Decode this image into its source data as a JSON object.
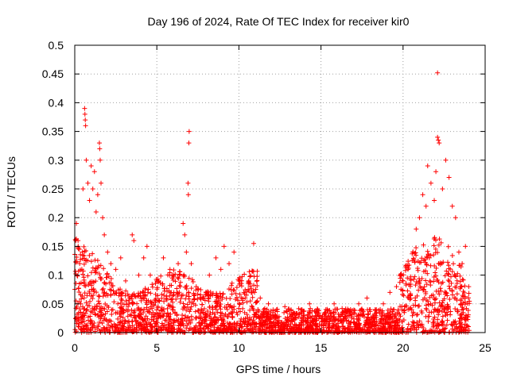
{
  "chart_data": {
    "type": "scatter",
    "title": "Day 196 of 2024, Rate Of TEC Index for receiver kir0",
    "xlabel": "GPS time / hours",
    "ylabel": "ROTI / TECUs",
    "xlim": [
      0,
      25
    ],
    "ylim": [
      0,
      0.5
    ],
    "xticks": [
      "0",
      "5",
      "10",
      "15",
      "20",
      "25"
    ],
    "yticks": [
      "0",
      "0.05",
      "0.1",
      "0.15",
      "0.2",
      "0.25",
      "0.3",
      "0.35",
      "0.4",
      "0.45",
      "0.5"
    ],
    "grid": true,
    "marker": "+",
    "series": [
      {
        "name": "ROTI",
        "color": "#ff0000",
        "points": [
          [
            0.1,
            0.19
          ],
          [
            0.2,
            0.16
          ],
          [
            0.3,
            0.12
          ],
          [
            0.5,
            0.25
          ],
          [
            0.6,
            0.39
          ],
          [
            0.62,
            0.38
          ],
          [
            0.64,
            0.37
          ],
          [
            0.66,
            0.36
          ],
          [
            0.7,
            0.3
          ],
          [
            0.8,
            0.26
          ],
          [
            0.9,
            0.23
          ],
          [
            1.0,
            0.29
          ],
          [
            1.1,
            0.25
          ],
          [
            1.2,
            0.28
          ],
          [
            1.3,
            0.21
          ],
          [
            1.4,
            0.24
          ],
          [
            1.5,
            0.33
          ],
          [
            1.52,
            0.32
          ],
          [
            1.55,
            0.3
          ],
          [
            1.6,
            0.26
          ],
          [
            1.7,
            0.2
          ],
          [
            1.8,
            0.17
          ],
          [
            2.0,
            0.14
          ],
          [
            2.2,
            0.12
          ],
          [
            2.5,
            0.11
          ],
          [
            2.8,
            0.13
          ],
          [
            3.1,
            0.09
          ],
          [
            3.5,
            0.17
          ],
          [
            3.6,
            0.16
          ],
          [
            3.9,
            0.1
          ],
          [
            4.2,
            0.13
          ],
          [
            4.4,
            0.15
          ],
          [
            4.6,
            0.1
          ],
          [
            5.0,
            0.09
          ],
          [
            5.4,
            0.13
          ],
          [
            5.8,
            0.11
          ],
          [
            6.0,
            0.1
          ],
          [
            6.3,
            0.12
          ],
          [
            6.6,
            0.19
          ],
          [
            6.7,
            0.17
          ],
          [
            6.8,
            0.14
          ],
          [
            6.9,
            0.26
          ],
          [
            6.92,
            0.24
          ],
          [
            6.95,
            0.33
          ],
          [
            6.97,
            0.35
          ],
          [
            7.1,
            0.12
          ],
          [
            7.4,
            0.08
          ],
          [
            7.8,
            0.06
          ],
          [
            8.2,
            0.1
          ],
          [
            8.6,
            0.13
          ],
          [
            8.9,
            0.11
          ],
          [
            9.1,
            0.15
          ],
          [
            9.4,
            0.12
          ],
          [
            9.7,
            0.14
          ],
          [
            10.0,
            0.09
          ],
          [
            10.3,
            0.07
          ],
          [
            10.6,
            0.09
          ],
          [
            10.9,
            0.155
          ],
          [
            11.3,
            0.06
          ],
          [
            11.8,
            0.05
          ],
          [
            12.3,
            0.04
          ],
          [
            12.8,
            0.045
          ],
          [
            13.3,
            0.035
          ],
          [
            13.8,
            0.04
          ],
          [
            14.3,
            0.05
          ],
          [
            14.8,
            0.04
          ],
          [
            15.3,
            0.04
          ],
          [
            15.8,
            0.05
          ],
          [
            16.3,
            0.035
          ],
          [
            16.8,
            0.04
          ],
          [
            17.3,
            0.05
          ],
          [
            17.8,
            0.06
          ],
          [
            18.3,
            0.04
          ],
          [
            18.8,
            0.05
          ],
          [
            19.2,
            0.07
          ],
          [
            19.6,
            0.08
          ],
          [
            20.0,
            0.09
          ],
          [
            20.3,
            0.11
          ],
          [
            20.6,
            0.14
          ],
          [
            20.8,
            0.18
          ],
          [
            21.0,
            0.2
          ],
          [
            21.2,
            0.24
          ],
          [
            21.4,
            0.22
          ],
          [
            21.5,
            0.29
          ],
          [
            21.7,
            0.26
          ],
          [
            21.9,
            0.23
          ],
          [
            22.0,
            0.28
          ],
          [
            22.1,
            0.34
          ],
          [
            22.15,
            0.335
          ],
          [
            22.2,
            0.33
          ],
          [
            22.1,
            0.452
          ],
          [
            22.4,
            0.25
          ],
          [
            22.6,
            0.3
          ],
          [
            22.8,
            0.27
          ],
          [
            23.0,
            0.22
          ],
          [
            23.2,
            0.2
          ],
          [
            23.4,
            0.14
          ],
          [
            23.6,
            0.12
          ],
          [
            23.8,
            0.15
          ],
          [
            24.0,
            0.08
          ]
        ],
        "dense_band": "most points cluster between 0 and 0.10 across the full 0–24 h range; heavier activity (0–0.25) near 0–2 h and 20.5–23.5 h"
      }
    ]
  }
}
